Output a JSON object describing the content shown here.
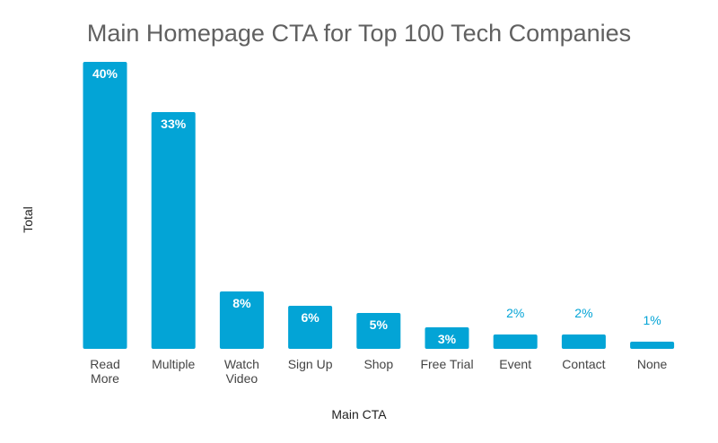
{
  "chart_data": {
    "type": "bar",
    "title": "Main Homepage CTA for Top 100 Tech Companies",
    "xlabel": "Main CTA",
    "ylabel": "Total",
    "categories": [
      [
        "Read",
        "More"
      ],
      [
        "Multiple"
      ],
      [
        "Watch",
        "Video"
      ],
      [
        "Sign Up"
      ],
      [
        "Shop"
      ],
      [
        "Free Trial"
      ],
      [
        "Event"
      ],
      [
        "Contact"
      ],
      [
        "None"
      ]
    ],
    "values": [
      40,
      33,
      8,
      6,
      5,
      3,
      2,
      2,
      1
    ],
    "value_labels": [
      "40%",
      "33%",
      "8%",
      "6%",
      "5%",
      "3%",
      "2%",
      "2%",
      "1%"
    ],
    "ylim": [
      0,
      40
    ],
    "grid": false,
    "legend": "none",
    "bar_color": "#03a4d6"
  }
}
